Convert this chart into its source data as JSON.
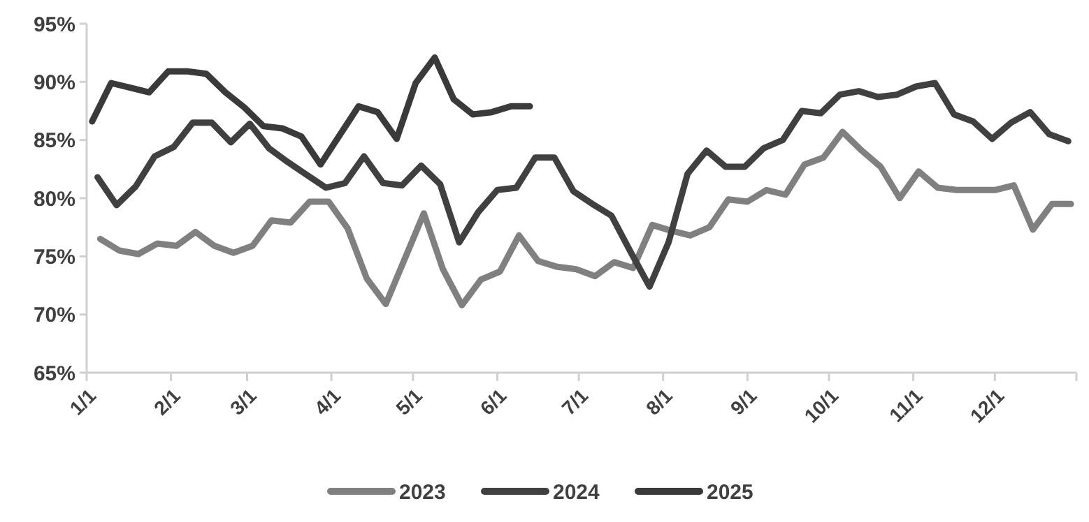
{
  "chart_data": {
    "type": "line",
    "xlim": [
      "--01-01",
      "--12-31"
    ],
    "xticks": [
      {
        "value": "--01-01",
        "label": "1/1"
      },
      {
        "value": "--02-01",
        "label": "2/1"
      },
      {
        "value": "--03-01",
        "label": "3/1"
      },
      {
        "value": "--04-01",
        "label": "4/1"
      },
      {
        "value": "--05-01",
        "label": "5/1"
      },
      {
        "value": "--06-01",
        "label": "6/1"
      },
      {
        "value": "--07-01",
        "label": "7/1"
      },
      {
        "value": "--08-01",
        "label": "8/1"
      },
      {
        "value": "--09-01",
        "label": "9/1"
      },
      {
        "value": "--10-01",
        "label": "10/1"
      },
      {
        "value": "--11-01",
        "label": "11/1"
      },
      {
        "value": "--12-01",
        "label": "12/1"
      },
      {
        "value": "--12-31",
        "label": null
      }
    ],
    "ylim": [
      65,
      95
    ],
    "yticks": [
      {
        "value": 65,
        "label": "65%"
      },
      {
        "value": 70,
        "label": "70%"
      },
      {
        "value": 75,
        "label": "75%"
      },
      {
        "value": 80,
        "label": "80%"
      },
      {
        "value": 85,
        "label": "85%"
      },
      {
        "value": 90,
        "label": "90%"
      },
      {
        "value": 95,
        "label": "95%"
      }
    ],
    "grid": false,
    "legend": "bottom",
    "marker": "none",
    "line_style": "solid",
    "series": [
      {
        "name": "2023",
        "color": "#808080",
        "x": [
          "--01-06",
          "--01-13",
          "--01-20",
          "--01-27",
          "--02-03",
          "--02-10",
          "--02-17",
          "--02-24",
          "--03-03",
          "--03-10",
          "--03-17",
          "--03-24",
          "--03-31",
          "--04-07",
          "--04-14",
          "--04-21",
          "--04-28",
          "--05-05",
          "--05-12",
          "--05-19",
          "--05-26",
          "--06-02",
          "--06-09",
          "--06-16",
          "--06-23",
          "--06-30",
          "--07-07",
          "--07-14",
          "--07-21",
          "--07-28",
          "--08-04",
          "--08-11",
          "--08-18",
          "--08-25",
          "--09-01",
          "--09-08",
          "--09-15",
          "--09-22",
          "--09-29",
          "--10-06",
          "--10-13",
          "--10-20",
          "--10-27",
          "--11-03",
          "--11-10",
          "--11-17",
          "--11-24",
          "--12-01",
          "--12-08",
          "--12-15",
          "--12-22",
          "--12-29"
        ],
        "values": [
          76.5,
          75.5,
          75.2,
          76.1,
          75.9,
          77.1,
          75.9,
          75.3,
          75.9,
          78.1,
          77.9,
          79.7,
          79.7,
          77.4,
          73.1,
          70.9,
          74.8,
          78.7,
          73.9,
          70.8,
          73.0,
          73.7,
          76.8,
          74.6,
          74.1,
          73.9,
          73.3,
          74.5,
          74.0,
          77.7,
          77.2,
          76.8,
          77.5,
          79.9,
          79.7,
          80.7,
          80.3,
          82.9,
          83.5,
          85.7,
          84.1,
          82.7,
          80.0,
          82.3,
          80.9,
          80.7,
          80.7,
          80.7,
          81.1,
          77.3,
          79.5,
          79.5
        ]
      },
      {
        "name": "2024",
        "color": "#404040",
        "x": [
          "--01-05",
          "--01-12",
          "--01-19",
          "--01-26",
          "--02-02",
          "--02-09",
          "--02-16",
          "--02-23",
          "--03-02",
          "--03-09",
          "--03-16",
          "--03-23",
          "--03-30",
          "--04-06",
          "--04-13",
          "--04-20",
          "--04-27",
          "--05-04",
          "--05-11",
          "--05-18",
          "--05-25",
          "--06-01",
          "--06-08",
          "--06-15",
          "--06-22",
          "--06-29",
          "--07-06",
          "--07-13",
          "--07-20",
          "--07-27",
          "--08-03",
          "--08-10",
          "--08-17",
          "--08-24",
          "--08-31",
          "--09-07",
          "--09-14",
          "--09-21",
          "--09-28",
          "--10-05",
          "--10-12",
          "--10-19",
          "--10-26",
          "--11-02",
          "--11-09",
          "--11-16",
          "--11-23",
          "--11-30",
          "--12-07",
          "--12-14",
          "--12-21",
          "--12-28"
        ],
        "values": [
          81.8,
          79.4,
          81.0,
          83.6,
          84.4,
          86.5,
          86.5,
          84.8,
          86.4,
          84.3,
          83.1,
          82.0,
          80.9,
          81.3,
          83.6,
          81.3,
          81.1,
          82.8,
          81.2,
          76.2,
          78.8,
          80.7,
          80.9,
          83.5,
          83.5,
          80.6,
          79.5,
          78.5,
          75.4,
          72.4,
          76.2,
          82.1,
          84.1,
          82.7,
          82.7,
          84.3,
          85.0,
          87.5,
          87.3,
          88.9,
          89.2,
          88.7,
          88.9,
          89.6,
          89.9,
          87.2,
          86.6,
          85.1,
          86.5,
          87.4,
          85.5,
          84.9
        ]
      },
      {
        "name": "2025",
        "color": "#3a3a3a",
        "x": [
          "--01-03",
          "--01-10",
          "--01-17",
          "--01-24",
          "--01-31",
          "--02-07",
          "--02-14",
          "--02-21",
          "--02-28",
          "--03-07",
          "--03-14",
          "--03-21",
          "--03-28",
          "--04-04",
          "--04-11",
          "--04-18",
          "--04-25",
          "--05-02",
          "--05-09",
          "--05-16",
          "--05-23",
          "--05-30",
          "--06-06",
          "--06-13"
        ],
        "values": [
          86.6,
          89.9,
          89.5,
          89.1,
          90.9,
          90.9,
          90.7,
          89.1,
          87.8,
          86.2,
          86.0,
          85.3,
          82.9,
          85.4,
          87.9,
          87.4,
          85.1,
          89.9,
          92.1,
          88.5,
          87.2,
          87.4,
          87.9,
          87.9
        ]
      }
    ]
  }
}
